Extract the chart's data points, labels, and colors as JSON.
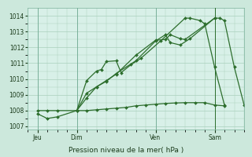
{
  "background_color": "#cce8dc",
  "plot_bg_color": "#d8f0e8",
  "grid_color": "#aacfbc",
  "line_color": "#2d6e2d",
  "title": "Pression niveau de la mer( hPa )",
  "ylim": [
    1006.8,
    1014.5
  ],
  "yticks": [
    1007,
    1008,
    1009,
    1010,
    1011,
    1012,
    1013,
    1014
  ],
  "day_labels": [
    "Jeu",
    "Dim",
    "Ven",
    "Sam"
  ],
  "day_positions": [
    0,
    16,
    48,
    72
  ],
  "xlim": [
    -4,
    84
  ],
  "series1_x": [
    0,
    4,
    8,
    16,
    20,
    24,
    26,
    28,
    32,
    34,
    38,
    42,
    50,
    60,
    62,
    66,
    68,
    72,
    76
  ],
  "series1_y": [
    1007.8,
    1007.5,
    1007.6,
    1008.0,
    1009.9,
    1010.5,
    1010.6,
    1011.1,
    1011.15,
    1010.4,
    1010.9,
    1011.3,
    1012.4,
    1013.85,
    1013.85,
    1013.7,
    1013.5,
    1010.75,
    1008.35
  ],
  "series2_x": [
    0,
    4,
    8,
    16,
    20,
    24,
    28,
    32,
    36,
    40,
    44,
    48,
    52,
    56,
    60,
    64,
    68,
    72,
    76
  ],
  "series2_y": [
    1008.0,
    1008.0,
    1008.0,
    1008.0,
    1008.0,
    1008.05,
    1008.1,
    1008.15,
    1008.2,
    1008.3,
    1008.35,
    1008.4,
    1008.45,
    1008.48,
    1008.5,
    1008.5,
    1008.5,
    1008.35,
    1008.3
  ],
  "series3_x": [
    16,
    20,
    24,
    28,
    32,
    40,
    48,
    52,
    54,
    58,
    60,
    72
  ],
  "series3_y": [
    1008.0,
    1008.8,
    1009.5,
    1009.9,
    1010.3,
    1011.5,
    1012.45,
    1012.5,
    1012.8,
    1012.55,
    1012.5,
    1013.85
  ],
  "series4_x": [
    16,
    20,
    24,
    28,
    32,
    40,
    48,
    52,
    54,
    58,
    62,
    72,
    74,
    76,
    80,
    84
  ],
  "series4_y": [
    1008.0,
    1009.1,
    1009.5,
    1009.85,
    1010.35,
    1011.15,
    1012.4,
    1012.8,
    1012.3,
    1012.15,
    1012.55,
    1013.85,
    1013.85,
    1013.7,
    1010.75,
    1008.35
  ],
  "vline_x": 72
}
